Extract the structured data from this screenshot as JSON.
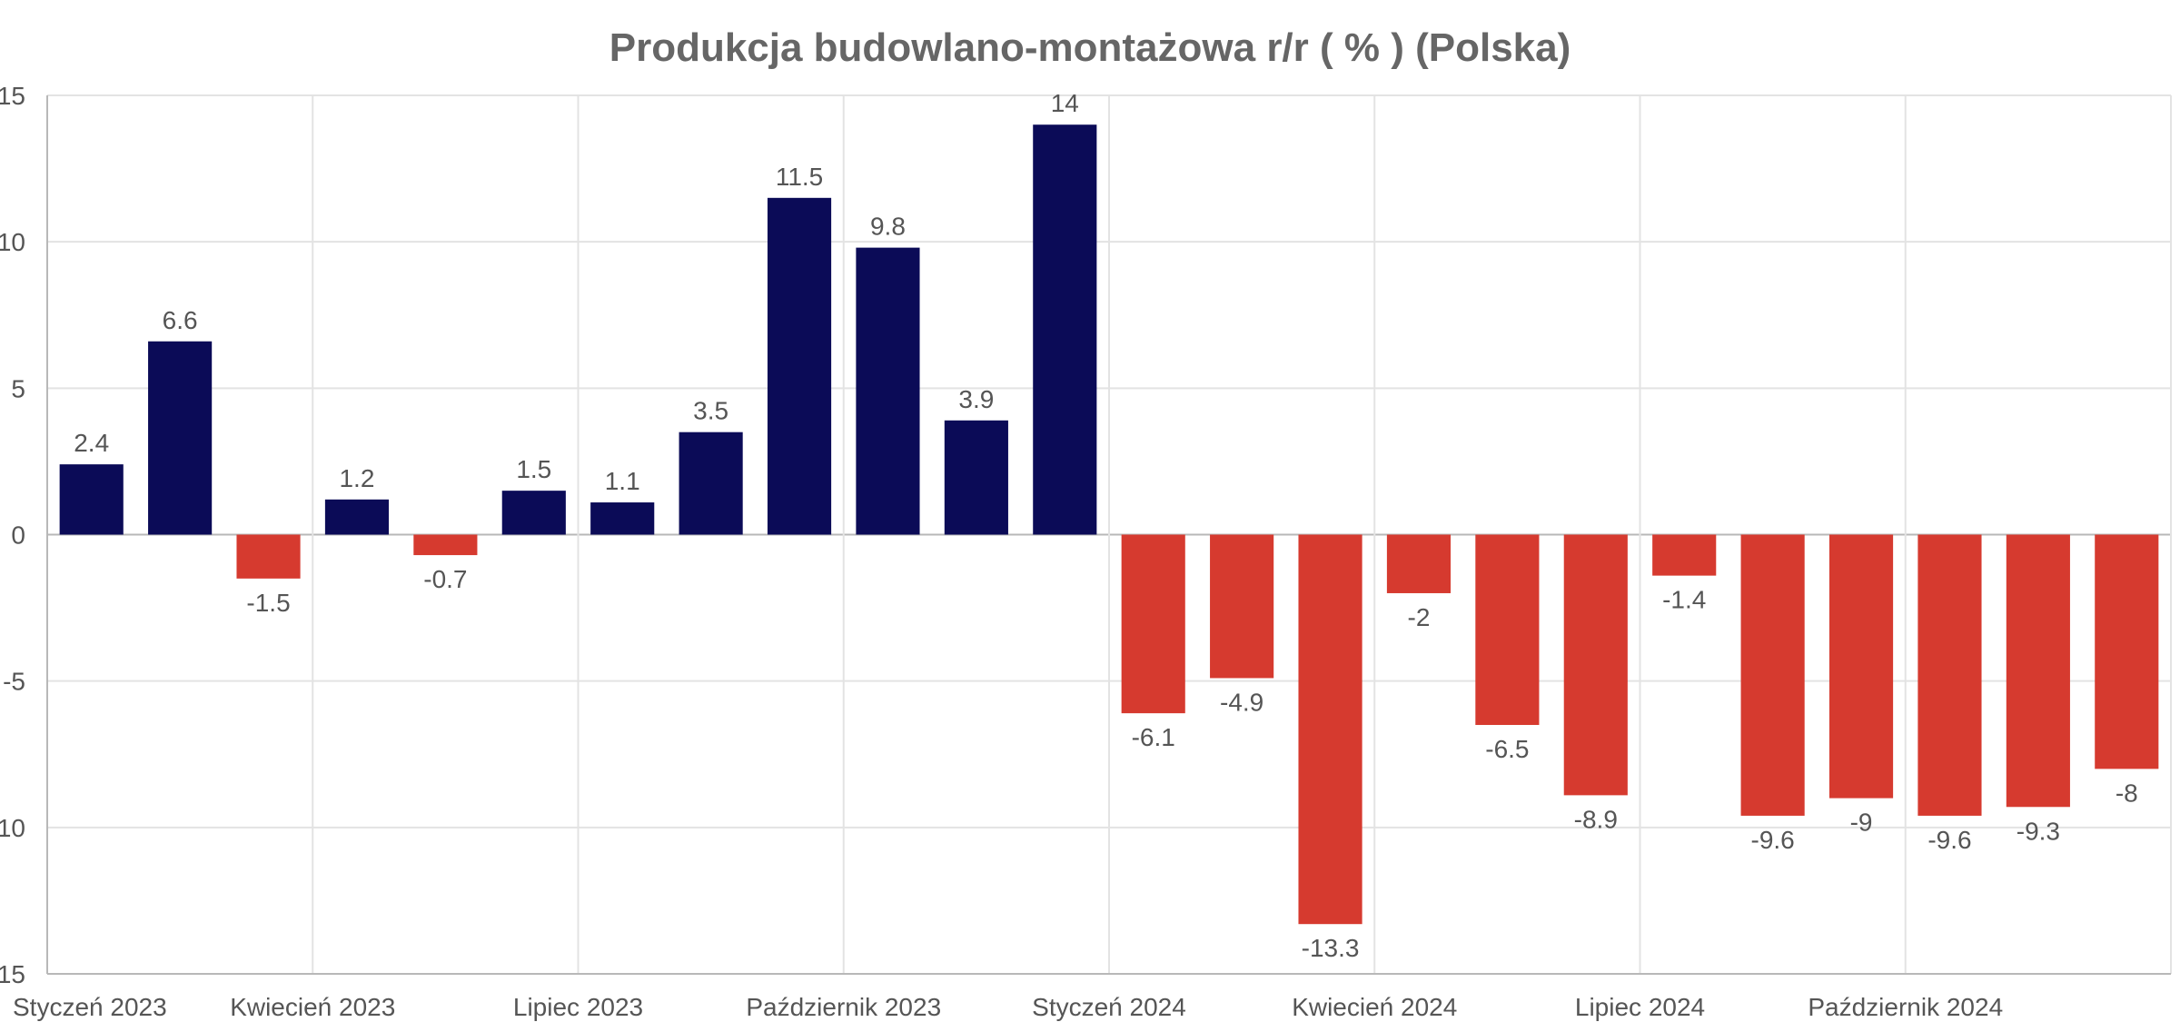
{
  "chart_data": {
    "type": "bar",
    "title": "Produkcja budowlano-montażowa r/r ( % ) (Polska)",
    "xlabel": "",
    "ylabel": "",
    "ylim": [
      -15,
      15
    ],
    "yticks": [
      15,
      10,
      5,
      0,
      -5,
      -10,
      -15
    ],
    "grid": true,
    "xtick_labels": [
      "Styczeń 2023",
      "Kwiecień 2023",
      "Lipiec 2023",
      "Październik 2023",
      "Styczeń 2024",
      "Kwiecień 2024",
      "Lipiec 2024",
      "Październik 2024"
    ],
    "colors": {
      "positive": "#0b0b57",
      "negative": "#d63a2f"
    },
    "values": [
      2.4,
      6.6,
      -1.5,
      1.2,
      -0.7,
      1.5,
      1.1,
      3.5,
      11.5,
      9.8,
      3.9,
      14,
      -6.1,
      -4.9,
      -13.3,
      -2,
      -6.5,
      -8.9,
      -1.4,
      -9.6,
      -9,
      -9.6,
      -9.3,
      -8
    ]
  }
}
